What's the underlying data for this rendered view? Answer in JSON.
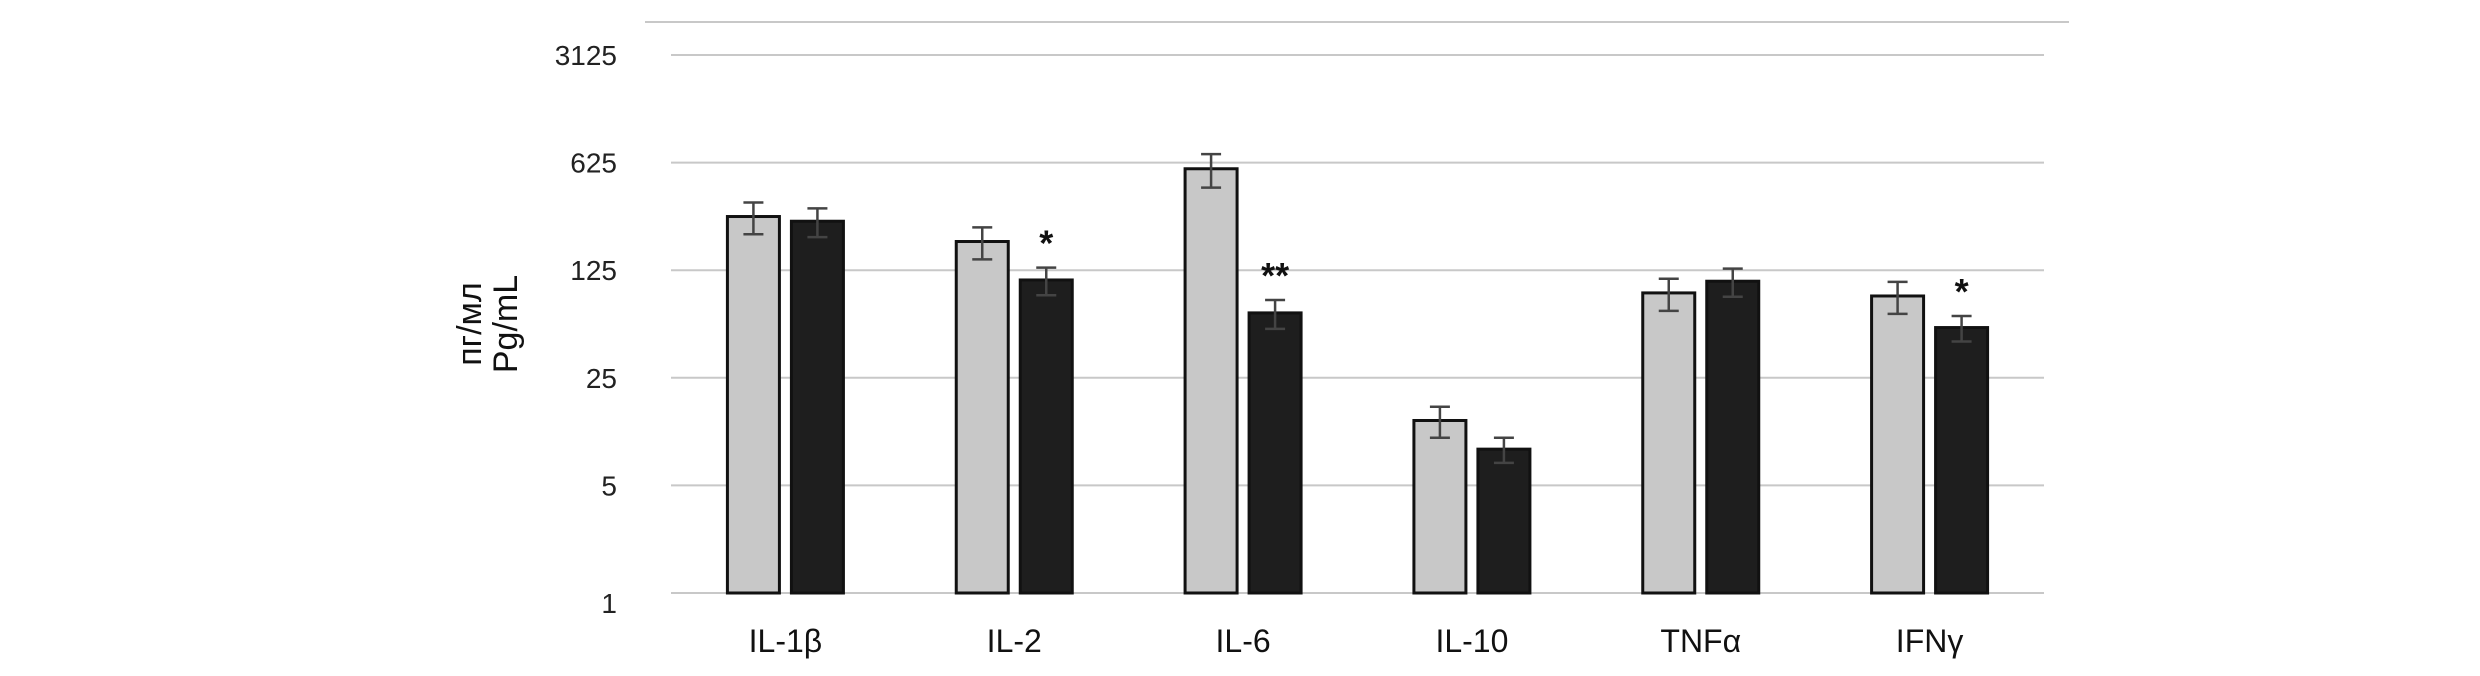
{
  "chart_data": {
    "type": "bar",
    "title": "",
    "xlabel": "",
    "ylabel_lines": [
      "пг/мл",
      "Pg/mL"
    ],
    "yscale": "log5",
    "ylim": [
      1,
      3125
    ],
    "yticks": [
      1,
      5,
      25,
      125,
      625,
      3125
    ],
    "ytick_labels": [
      "1",
      "5",
      "25",
      "125",
      "625",
      "3125"
    ],
    "grid": true,
    "legend": "none",
    "categories": [
      "IL-1β",
      "IL-2",
      "IL-6",
      "IL-10",
      "TNFα",
      "IFNγ"
    ],
    "series": [
      {
        "name": "light",
        "color": "#c8c8c8",
        "values": [
          279,
          192,
          570,
          13.2,
          89,
          85
        ],
        "errors": [
          65,
          45,
          140,
          3,
          21,
          20
        ]
      },
      {
        "name": "dark",
        "color": "#1e1e1e",
        "values": [
          260,
          108,
          66,
          8.6,
          106,
          53
        ],
        "errors": [
          55,
          22,
          14,
          1.6,
          22,
          10
        ]
      }
    ],
    "annotations": [
      {
        "category": "IL-2",
        "series": "dark",
        "text": "*"
      },
      {
        "category": "IL-6",
        "series": "dark",
        "text": "**"
      },
      {
        "category": "IFNγ",
        "series": "dark",
        "text": "*"
      }
    ]
  }
}
